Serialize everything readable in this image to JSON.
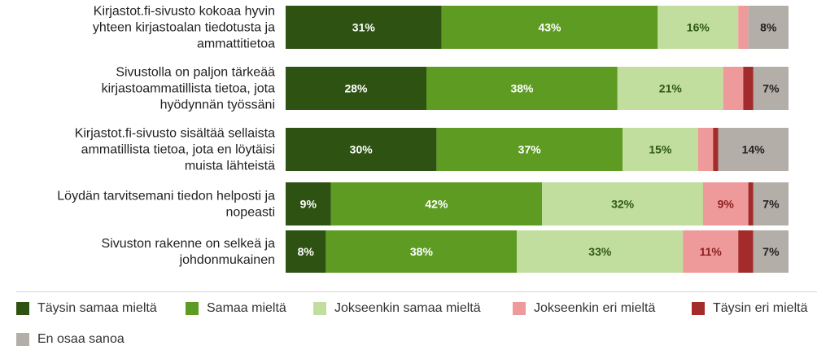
{
  "chart_data": {
    "type": "bar",
    "orientation": "horizontal-stacked-100",
    "categories": [
      [
        "Kirjastot.fi-sivusto kokoaa hyvin",
        "yhteen kirjastoalan tiedotusta ja",
        "ammattitietoa"
      ],
      [
        "Sivustolla on paljon tärkeää",
        "kirjastoammatillista tietoa, jota",
        "hyödynnän työssäni"
      ],
      [
        "Kirjastot.fi-sivusto sisältää sellaista",
        "ammatillista tietoa, jota en löytäisi",
        "muista lähteistä"
      ],
      [
        "Löydän tarvitsemani tiedon helposti ja",
        "nopeasti"
      ],
      [
        "Sivuston rakenne on selkeä ja",
        "johdonmukainen"
      ]
    ],
    "series": [
      {
        "name": "Täysin samaa mieltä",
        "color": "#2d5211",
        "label_color": "#ffffff",
        "values": [
          31,
          28,
          30,
          9,
          8
        ],
        "labels": [
          "31%",
          "28%",
          "30%",
          "9%",
          "8%"
        ]
      },
      {
        "name": "Samaa mieltä",
        "color": "#5e9b23",
        "label_color": "#ffffff",
        "values": [
          43,
          38,
          37,
          42,
          38
        ],
        "labels": [
          "43%",
          "38%",
          "37%",
          "42%",
          "38%"
        ]
      },
      {
        "name": "Jokseenkin samaa mieltä",
        "color": "#c2de9e",
        "label_color": "#2f5a12",
        "values": [
          16,
          21,
          15,
          32,
          33
        ],
        "labels": [
          "16%",
          "21%",
          "15%",
          "32%",
          "33%"
        ]
      },
      {
        "name": "Jokseenkin eri mieltä",
        "color": "#ef9a9a",
        "label_color": "#8b1f1f",
        "values": [
          2,
          4,
          3,
          9,
          11
        ],
        "labels": [
          "",
          "",
          "",
          "9%",
          "11%"
        ]
      },
      {
        "name": "Täysin eri mieltä",
        "color": "#a32b2b",
        "label_color": "#ffffff",
        "values": [
          0,
          2,
          1,
          1,
          3
        ],
        "labels": [
          "",
          "",
          "",
          "",
          ""
        ]
      },
      {
        "name": "En osaa sanoa",
        "color": "#b3afa8",
        "label_color": "#222222",
        "values": [
          8,
          7,
          14,
          7,
          7
        ],
        "labels": [
          "8%",
          "7%",
          "14%",
          "7%",
          "7%"
        ]
      }
    ],
    "xlim": [
      0,
      100
    ],
    "grid": false,
    "legend_position": "bottom"
  }
}
